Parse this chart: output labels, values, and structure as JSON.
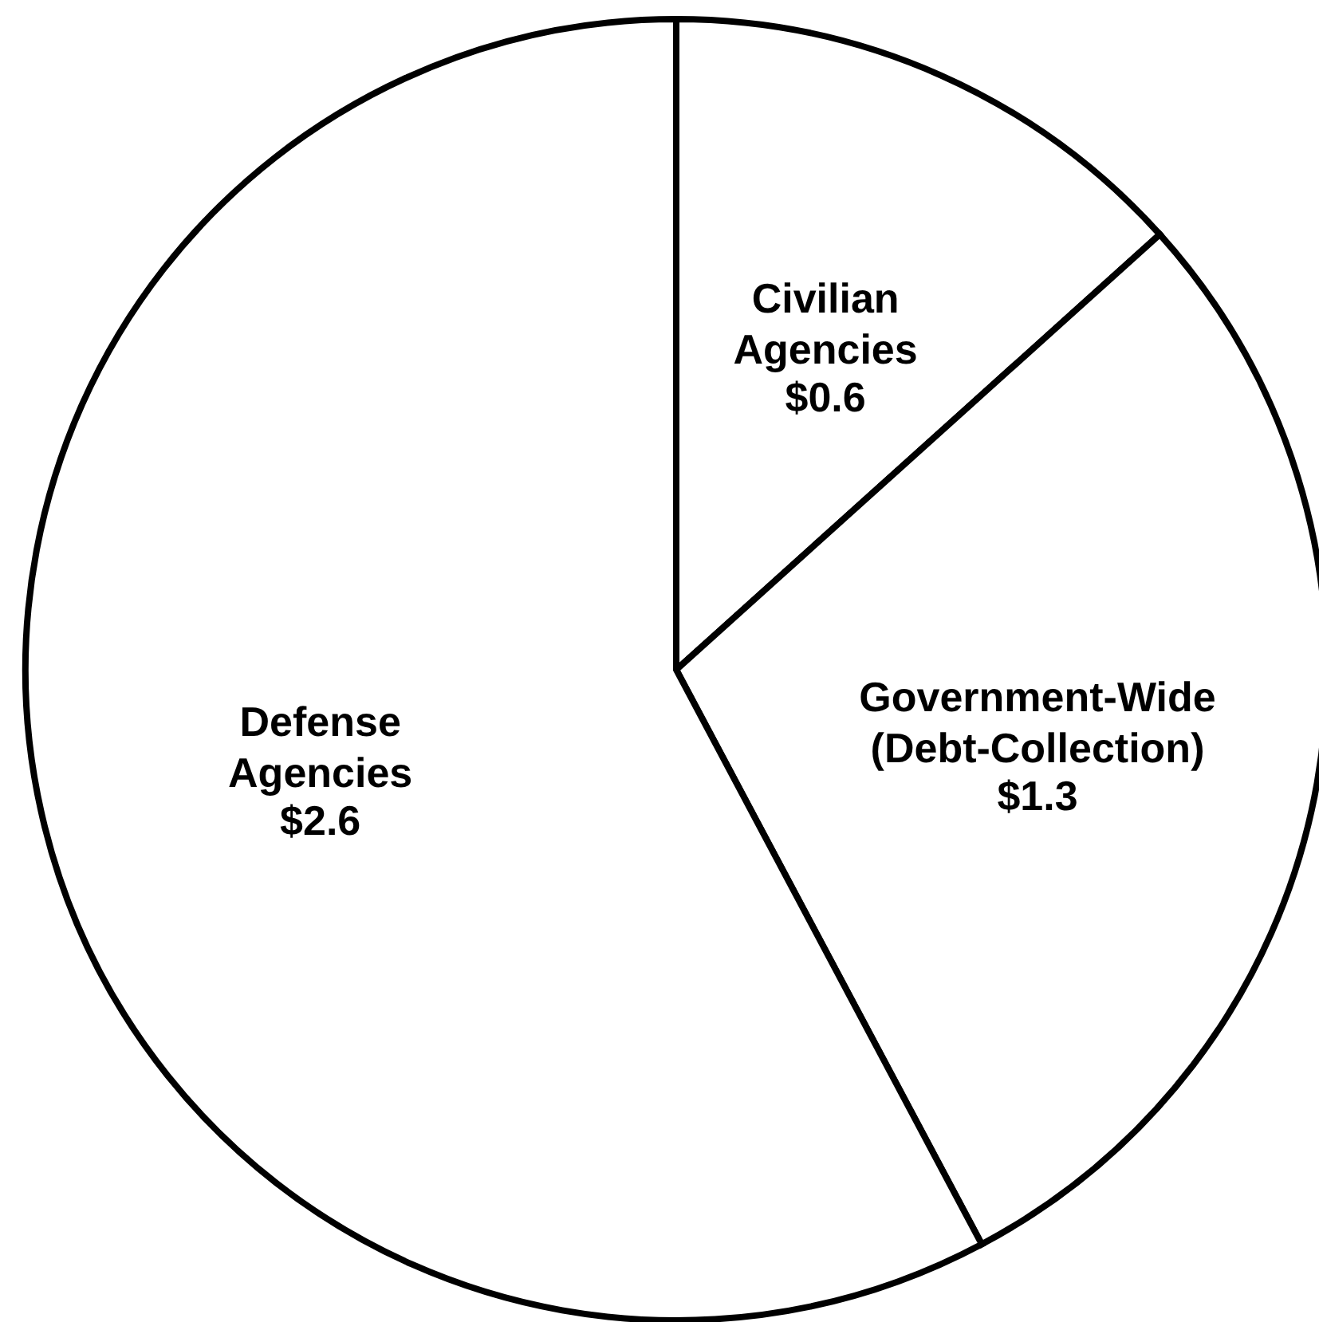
{
  "chart_data": {
    "type": "pie",
    "categories": [
      "Civilian Agencies",
      "Government-Wide (Debt-Collection)",
      "Defense Agencies"
    ],
    "values": [
      0.6,
      1.3,
      2.6
    ],
    "value_labels": [
      "$0.6",
      "$1.3",
      "$2.6"
    ],
    "colors": [
      "#ffffff",
      "#ffffff",
      "#ffffff"
    ]
  }
}
